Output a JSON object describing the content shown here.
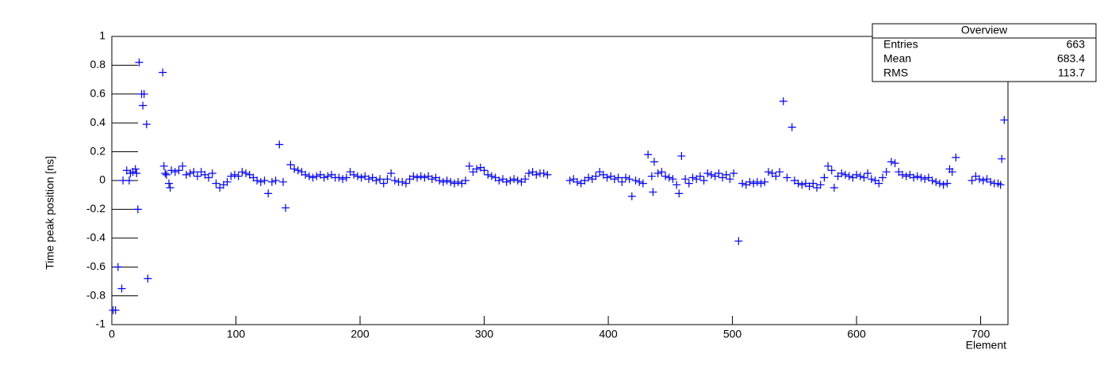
{
  "chart_data": {
    "type": "scatter",
    "y_label": "Time peak position [ns]",
    "x_label": "Element",
    "color": "#0000ff",
    "xlim": [
      0,
      722
    ],
    "xticks": [
      0,
      100,
      200,
      300,
      400,
      500,
      600,
      700
    ],
    "ylim": [
      -1,
      1
    ],
    "yticks": [
      -1,
      -0.8,
      -0.6,
      -0.4,
      -0.2,
      0,
      0.2,
      0.4,
      0.6,
      0.8,
      1
    ],
    "x": [
      1,
      3,
      5,
      8,
      9,
      12,
      14,
      15,
      17,
      19,
      20,
      21,
      22,
      24,
      25,
      26,
      28,
      29,
      41,
      42,
      43,
      44,
      46,
      47,
      48,
      51,
      54,
      57,
      60,
      63,
      66,
      69,
      72,
      75,
      78,
      81,
      84,
      87,
      90,
      93,
      96,
      99,
      102,
      105,
      108,
      111,
      114,
      117,
      120,
      123,
      126,
      129,
      132,
      135,
      138,
      140,
      144,
      147,
      150,
      153,
      156,
      159,
      162,
      165,
      168,
      171,
      174,
      177,
      180,
      183,
      186,
      189,
      192,
      195,
      198,
      201,
      204,
      207,
      210,
      213,
      216,
      219,
      222,
      225,
      228,
      231,
      234,
      237,
      240,
      243,
      246,
      249,
      252,
      255,
      258,
      261,
      264,
      267,
      270,
      273,
      276,
      279,
      282,
      285,
      288,
      291,
      294,
      297,
      300,
      303,
      306,
      309,
      312,
      315,
      318,
      321,
      324,
      327,
      330,
      333,
      336,
      339,
      342,
      345,
      348,
      351,
      369,
      372,
      375,
      378,
      381,
      384,
      387,
      390,
      393,
      396,
      399,
      402,
      405,
      408,
      411,
      414,
      417,
      419,
      422,
      425,
      428,
      432,
      435,
      436,
      437,
      440,
      443,
      446,
      449,
      452,
      455,
      457,
      459,
      462,
      465,
      468,
      471,
      474,
      477,
      480,
      483,
      486,
      489,
      492,
      495,
      498,
      501,
      505,
      508,
      511,
      514,
      517,
      520,
      523,
      526,
      529,
      532,
      535,
      538,
      541,
      544,
      548,
      550,
      553,
      556,
      559,
      562,
      565,
      568,
      571,
      574,
      577,
      580,
      582,
      585,
      588,
      591,
      594,
      597,
      600,
      603,
      606,
      609,
      612,
      615,
      618,
      621,
      624,
      628,
      631,
      634,
      637,
      640,
      643,
      646,
      649,
      652,
      655,
      658,
      661,
      664,
      667,
      670,
      673,
      675,
      677,
      680,
      693,
      696,
      699,
      702,
      705,
      708,
      711,
      714,
      716,
      717,
      719
    ],
    "values": [
      -0.9,
      -0.9,
      -0.6,
      -0.75,
      0,
      0.07,
      0,
      0.05,
      0.06,
      0.08,
      0.05,
      -0.2,
      0.82,
      0.6,
      0.52,
      0.6,
      0.39,
      -0.68,
      0.75,
      0.1,
      0.05,
      0.04,
      -0.02,
      -0.05,
      0.07,
      0.06,
      0.07,
      0.1,
      0.04,
      0.05,
      0.06,
      0.03,
      0.06,
      0.04,
      0.02,
      0.05,
      -0.02,
      -0.05,
      -0.03,
      -0.01,
      0.03,
      0.04,
      0.03,
      0.06,
      0.05,
      0.04,
      0.02,
      0,
      -0.01,
      0,
      -0.09,
      -0.01,
      0,
      0.25,
      -0.01,
      -0.19,
      0.11,
      0.08,
      0.07,
      0.06,
      0.04,
      0.03,
      0.02,
      0.03,
      0.04,
      0.02,
      0.03,
      0.04,
      0.02,
      0.02,
      0.01,
      0.02,
      0.06,
      0.04,
      0.03,
      0.02,
      0.03,
      0.01,
      0.02,
      0,
      0.01,
      -0.02,
      0.01,
      0.05,
      0,
      -0.01,
      -0.01,
      -0.02,
      0.01,
      0.03,
      0.02,
      0.03,
      0.02,
      0.03,
      0.01,
      0.02,
      0,
      -0.01,
      0,
      -0.01,
      -0.02,
      -0.01,
      -0.02,
      0,
      0.1,
      0.06,
      0.08,
      0.09,
      0.07,
      0.04,
      0.03,
      0.02,
      0,
      0.01,
      -0.01,
      0,
      0.01,
      0,
      -0.01,
      0.01,
      0.05,
      0.06,
      0.04,
      0.05,
      0.05,
      0.04,
      0,
      0.01,
      -0.01,
      -0.02,
      0,
      0.02,
      0.01,
      0.03,
      0.06,
      0.04,
      0.02,
      0.03,
      0.01,
      0.02,
      -0.01,
      0.02,
      0.01,
      -0.11,
      0,
      -0.01,
      -0.02,
      0.18,
      0.03,
      -0.08,
      0.13,
      0.05,
      0.06,
      0.03,
      0.02,
      0.01,
      -0.03,
      -0.09,
      0.17,
      0.01,
      -0.02,
      0.02,
      0.01,
      0.03,
      0,
      0.05,
      0.04,
      0.03,
      0.05,
      0.02,
      0.04,
      0.01,
      0.05,
      -0.42,
      -0.02,
      -0.03,
      -0.01,
      -0.02,
      -0.01,
      -0.02,
      -0.01,
      0.06,
      0.05,
      0.03,
      0.06,
      0.55,
      0.02,
      0.37,
      0,
      -0.02,
      -0.03,
      -0.02,
      -0.04,
      -0.02,
      -0.05,
      -0.03,
      0.02,
      0.1,
      0.07,
      -0.05,
      0.03,
      0.05,
      0.04,
      0.03,
      0.02,
      0.04,
      0.03,
      0.02,
      0.05,
      0.01,
      0,
      -0.02,
      0.02,
      0.06,
      0.13,
      0.12,
      0.06,
      0.04,
      0.03,
      0.04,
      0.02,
      0.03,
      0.02,
      0.01,
      0.02,
      0,
      -0.01,
      -0.02,
      -0.03,
      -0.02,
      0.08,
      0.06,
      0.16,
      0,
      0.03,
      0.01,
      0,
      0.01,
      -0.01,
      -0.02,
      -0.02,
      -0.03,
      0.15,
      0.42
    ]
  },
  "stats": {
    "title": "Overview",
    "rows": [
      [
        "Entries",
        663
      ],
      [
        "Mean",
        683.4
      ],
      [
        "RMS",
        113.7
      ]
    ]
  }
}
